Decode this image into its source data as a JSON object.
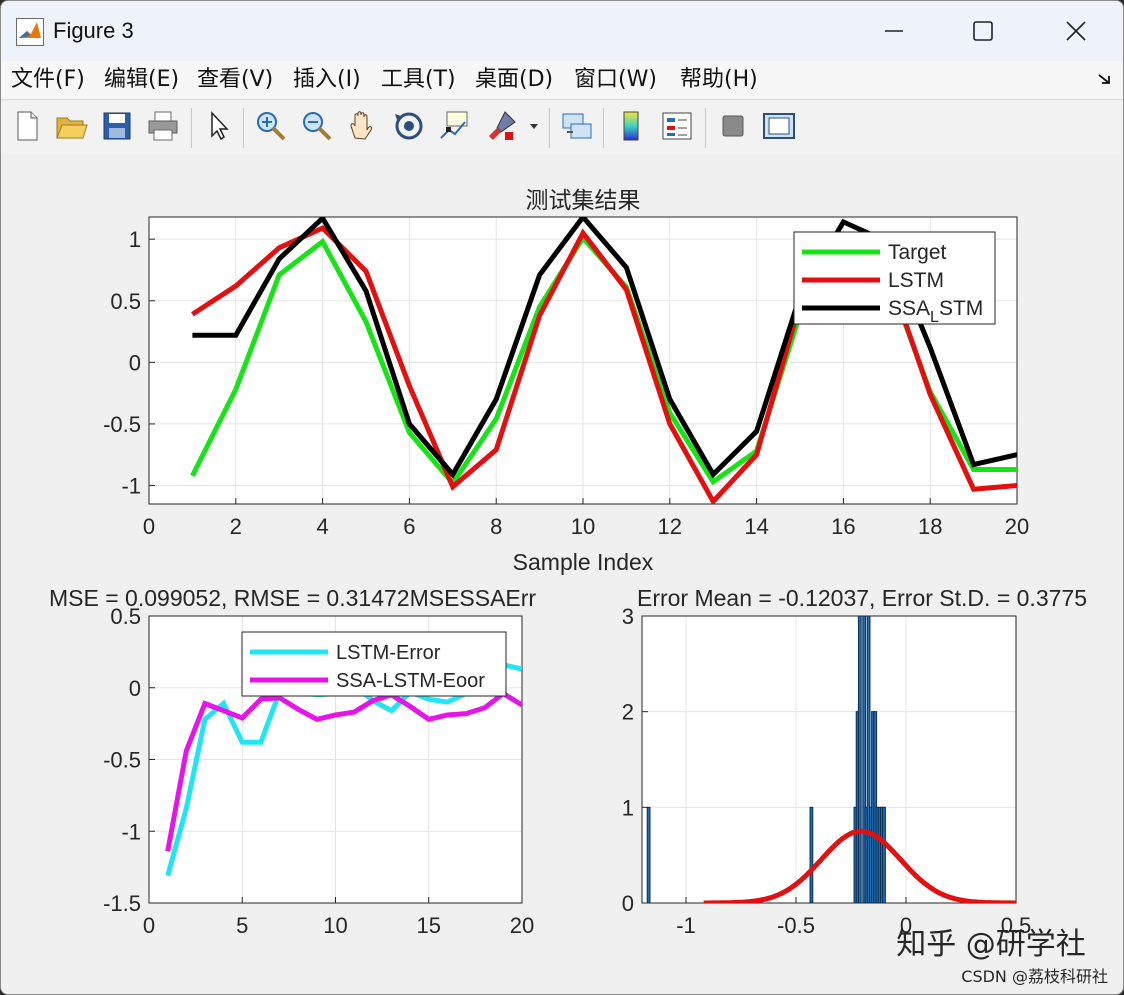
{
  "window": {
    "title": "Figure 3"
  },
  "menu": [
    "文件(F)",
    "编辑(E)",
    "查看(V)",
    "插入(I)",
    "工具(T)",
    "桌面(D)",
    "窗口(W)",
    "帮助(H)"
  ],
  "menu_extra_icon": "dock-arrow-icon",
  "toolbar": [
    "new-figure-icon",
    "open-file-icon",
    "save-icon",
    "print-icon",
    "select-pointer-icon",
    "zoom-in-icon",
    "zoom-out-icon",
    "pan-hand-icon",
    "rotate-3d-icon",
    "data-cursor-icon",
    "brush-icon",
    "brush-dropdown-icon",
    "link-plot-icon",
    "insert-colorbar-icon",
    "insert-legend-icon",
    "hide-plot-tools-icon",
    "show-plot-tools-icon"
  ],
  "chart_data": [
    {
      "type": "line",
      "title": "测试集结果",
      "xlabel": "Sample Index",
      "ylabel": "",
      "xlim": [
        0,
        20
      ],
      "ylim": [
        -1.15,
        1.18
      ],
      "xticks": [
        "0",
        "2",
        "4",
        "6",
        "8",
        "10",
        "12",
        "14",
        "16",
        "18",
        "20"
      ],
      "yticks": [
        "1",
        "0.5",
        "0",
        "-0.5",
        "-1"
      ],
      "grid": true,
      "legend": "top-right",
      "x": [
        1,
        2,
        3,
        4,
        5,
        6,
        7,
        8,
        9,
        10,
        11,
        12,
        13,
        14,
        15,
        16,
        17,
        18,
        19,
        20
      ],
      "series": [
        {
          "name": "Target",
          "color": "#17e317",
          "values": [
            -0.92,
            -0.22,
            0.71,
            0.98,
            0.33,
            -0.57,
            -0.98,
            -0.46,
            0.45,
            1.01,
            0.61,
            -0.41,
            -0.97,
            -0.72,
            0.39,
            0.95,
            0.72,
            -0.24,
            -0.87,
            -0.87
          ]
        },
        {
          "name": "LSTM",
          "color": "#e21010",
          "values": [
            0.39,
            0.62,
            0.93,
            1.09,
            0.74,
            -0.19,
            -1.01,
            -0.71,
            0.38,
            1.05,
            0.59,
            -0.5,
            -1.13,
            -0.75,
            0.48,
            0.92,
            0.76,
            -0.26,
            -1.03,
            -1.0
          ]
        },
        {
          "name": "SSA_LSTM",
          "color": "#000000",
          "values": [
            0.22,
            0.22,
            0.84,
            1.17,
            0.58,
            -0.5,
            -0.91,
            -0.3,
            0.71,
            1.18,
            0.77,
            -0.3,
            -0.91,
            -0.56,
            0.54,
            1.14,
            0.98,
            0.12,
            -0.83,
            -0.75
          ]
        }
      ],
      "annotation": "MSE = 0.099052, RMSE = 0.31472MSESSAErr"
    },
    {
      "type": "line",
      "title": "",
      "xlabel": "",
      "ylabel": "",
      "xlim": [
        0,
        20
      ],
      "ylim": [
        -1.5,
        0.5
      ],
      "xticks": [
        "0",
        "5",
        "10",
        "15",
        "20"
      ],
      "yticks": [
        "0.5",
        "0",
        "-0.5",
        "-1",
        "-1.5"
      ],
      "grid": true,
      "legend": "top-right",
      "x": [
        1,
        2,
        3,
        4,
        5,
        6,
        7,
        8,
        9,
        10,
        11,
        12,
        13,
        14,
        15,
        16,
        17,
        18,
        19,
        20
      ],
      "series": [
        {
          "name": "LSTM-Error",
          "color": "#22e5f2",
          "values": [
            -1.31,
            -0.84,
            -0.22,
            -0.11,
            -0.38,
            -0.38,
            -0.03,
            -0.03,
            -0.05,
            -0.04,
            0.02,
            -0.09,
            -0.16,
            -0.03,
            -0.08,
            -0.1,
            -0.04,
            0.02,
            0.16,
            0.13
          ]
        },
        {
          "name": "SSA-LSTM-Eoor",
          "color": "#e614e6",
          "values": [
            -1.14,
            -0.44,
            -0.11,
            -0.16,
            -0.21,
            -0.08,
            -0.07,
            -0.15,
            -0.22,
            -0.19,
            -0.17,
            -0.09,
            -0.05,
            -0.13,
            -0.22,
            -0.19,
            -0.18,
            -0.14,
            -0.04,
            -0.12
          ]
        }
      ]
    },
    {
      "type": "bar",
      "title": "Error Mean = -0.12037, Error St.D. = 0.3775",
      "xlabel": "",
      "ylabel": "",
      "xlim": [
        -1.2,
        0.5
      ],
      "ylim": [
        0,
        3
      ],
      "xticks": [
        "-1",
        "-0.5",
        "0",
        "0.5"
      ],
      "yticks": [
        "3",
        "2",
        "1",
        "0"
      ],
      "grid": true,
      "histogram": {
        "bin_width": 0.0125,
        "color": "#1f6fb5",
        "bins": [
          {
            "x": -1.17,
            "count": 1
          },
          {
            "x": -0.43,
            "count": 1
          },
          {
            "x": -0.23,
            "count": 1
          },
          {
            "x": -0.22,
            "count": 2
          },
          {
            "x": -0.21,
            "count": 3
          },
          {
            "x": -0.19,
            "count": 3
          },
          {
            "x": -0.18,
            "count": 1
          },
          {
            "x": -0.17,
            "count": 3
          },
          {
            "x": -0.16,
            "count": 1
          },
          {
            "x": -0.15,
            "count": 2
          },
          {
            "x": -0.14,
            "count": 2
          },
          {
            "x": -0.13,
            "count": 1
          },
          {
            "x": -0.12,
            "count": 1
          },
          {
            "x": -0.11,
            "count": 1
          },
          {
            "x": -0.1,
            "count": 1
          }
        ]
      },
      "fit_curve": {
        "color": "#e21010",
        "mean": -0.205,
        "peak": 0.75,
        "sigma": 0.18,
        "x_range": [
          -0.92,
          0.5
        ]
      }
    }
  ],
  "watermark": {
    "text1": "知乎 @研学社",
    "text2": "CSDN @荔枝科研社"
  }
}
